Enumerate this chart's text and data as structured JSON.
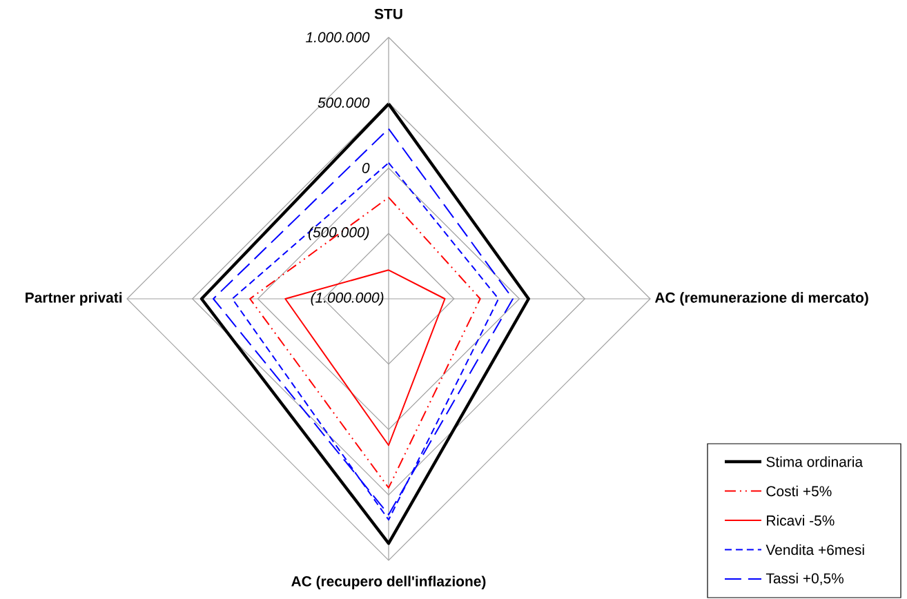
{
  "chart_data": {
    "type": "radar",
    "categories": [
      "STU",
      "AC (remunerazione  di mercato)",
      "AC (recupero  dell'inflazione)",
      "Partner privati"
    ],
    "ylim": [
      -1000000,
      1000000
    ],
    "yticks": [
      {
        "value": -1000000,
        "label": "(1.000.000)"
      },
      {
        "value": -500000,
        "label": "(500.000)"
      },
      0,
      {
        "value": 500000,
        "label": "500.000"
      },
      {
        "value": 1000000,
        "label": "1.000.000"
      }
    ],
    "grid": true,
    "legend": "bottom right",
    "series": [
      {
        "name": "Stima ordinaria",
        "color": "#000000",
        "line_style": "solid",
        "values": [
          490000,
          70000,
          870000,
          430000
        ]
      },
      {
        "name": "Costi +5%",
        "color": "#ff0000",
        "line_style": "dashdotdot",
        "values": [
          -225000,
          -300000,
          445000,
          60000
        ]
      },
      {
        "name": "Ricavi -5%",
        "color": "#ff0000",
        "line_style": "solid",
        "values": [
          -780000,
          -570000,
          120000,
          -210000
        ]
      },
      {
        "name": "Vendita +6mesi",
        "color": "#0000ff",
        "line_style": "dashed",
        "values": [
          40000,
          -160000,
          690000,
          195000
        ]
      },
      {
        "name": "Tassi +0,5%",
        "color": "#0000ff",
        "line_style": "longdashed",
        "values": [
          300000,
          -50000,
          650000,
          340000
        ]
      }
    ]
  }
}
